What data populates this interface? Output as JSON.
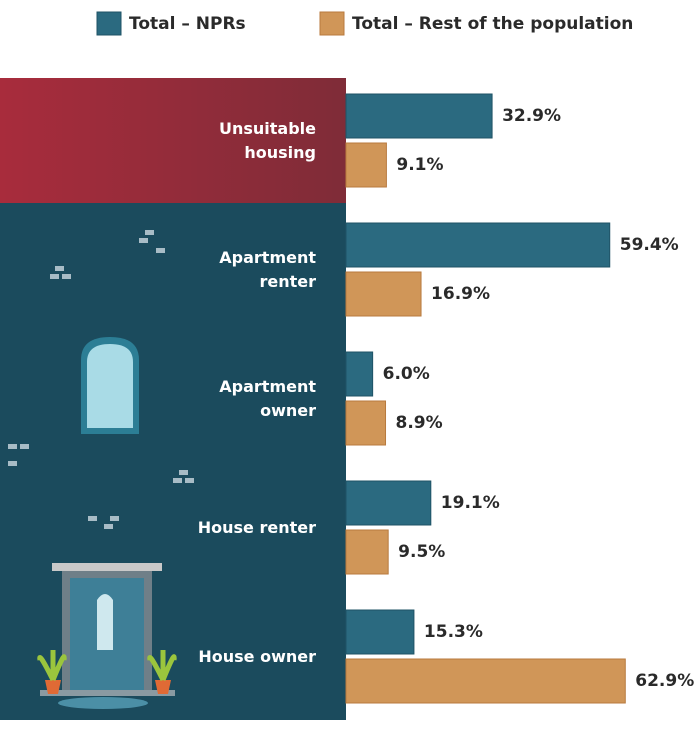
{
  "chart_data": {
    "type": "bar",
    "orientation": "horizontal",
    "categories": [
      "Unsuitable housing",
      "Apartment renter",
      "Apartment owner",
      "House renter",
      "House owner"
    ],
    "series": [
      {
        "name": "Total – NPRs",
        "color": "#2b6a80",
        "values": [
          32.9,
          59.4,
          6.0,
          19.1,
          15.3
        ],
        "value_labels": [
          "32.9%",
          "59.4%",
          "6.0%",
          "19.1%",
          "15.3%"
        ]
      },
      {
        "name": "Total – Rest of the population",
        "color": "#d09658",
        "values": [
          9.1,
          16.9,
          8.9,
          9.5,
          62.9
        ],
        "value_labels": [
          "9.1%",
          "16.9%",
          "8.9%",
          "9.5%",
          "62.9%"
        ]
      }
    ],
    "legend": "top"
  }
}
